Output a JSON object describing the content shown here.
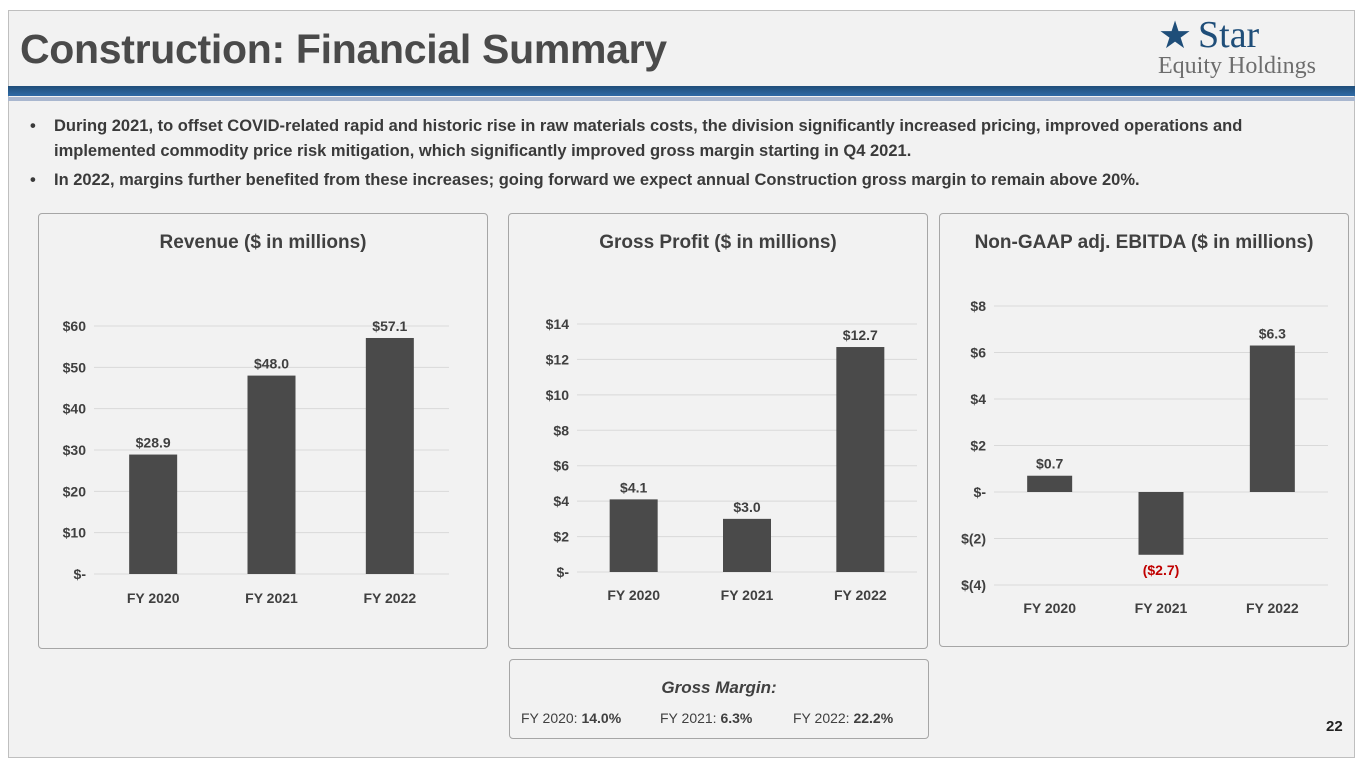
{
  "slide": {
    "title": "Construction: Financial Summary",
    "page_number": "22"
  },
  "logo": {
    "star_glyph": "★",
    "word": "Star",
    "sub": "Equity Holdings"
  },
  "bullets": [
    "During 2021, to offset COVID-related rapid and historic rise in raw materials costs, the division significantly increased pricing, improved operations and implemented commodity price risk mitigation, which significantly improved gross margin starting in Q4 2021.",
    "In 2022, margins further benefited from these increases; going forward we expect annual Construction gross margin to remain above 20%."
  ],
  "bullet_glyph": "•",
  "colors": {
    "bar": "#4a4a4a",
    "negative_label": "#c00000",
    "grid": "#d9d9d9",
    "text": "#404040"
  },
  "chart_data": [
    {
      "type": "bar",
      "title": "Revenue  ($ in millions)",
      "categories": [
        "FY 2020",
        "FY 2021",
        "FY 2022"
      ],
      "values": [
        28.9,
        48.0,
        57.1
      ],
      "data_labels": [
        "$28.9",
        "$48.0",
        "$57.1"
      ],
      "yticks": [
        0,
        10,
        20,
        30,
        40,
        50,
        60
      ],
      "ytick_labels": [
        "$-",
        "$10",
        "$20",
        "$30",
        "$40",
        "$50",
        "$60"
      ],
      "ylim": [
        0,
        60
      ],
      "xlabel": "",
      "ylabel": ""
    },
    {
      "type": "bar",
      "title": "Gross Profit  ($ in millions)",
      "categories": [
        "FY 2020",
        "FY 2021",
        "FY 2022"
      ],
      "values": [
        4.1,
        3.0,
        12.7
      ],
      "data_labels": [
        "$4.1",
        "$3.0",
        "$12.7"
      ],
      "yticks": [
        0,
        2,
        4,
        6,
        8,
        10,
        12,
        14
      ],
      "ytick_labels": [
        "$-",
        "$2",
        "$4",
        "$6",
        "$8",
        "$10",
        "$12",
        "$14"
      ],
      "ylim": [
        0,
        14
      ],
      "xlabel": "",
      "ylabel": ""
    },
    {
      "type": "bar",
      "title": "Non-GAAP adj. EBITDA ($ in millions)",
      "categories": [
        "FY 2020",
        "FY 2021",
        "FY 2022"
      ],
      "values": [
        0.7,
        -2.7,
        6.3
      ],
      "data_labels": [
        "$0.7",
        "($2.7)",
        "$6.3"
      ],
      "yticks": [
        -4,
        -2,
        0,
        2,
        4,
        6,
        8
      ],
      "ytick_labels": [
        "$(4)",
        "$(2)",
        "$-",
        "$2",
        "$4",
        "$6",
        "$8"
      ],
      "ylim": [
        -4,
        8
      ],
      "xlabel": "",
      "ylabel": ""
    }
  ],
  "gross_margin": {
    "title": "Gross Margin:",
    "items": [
      {
        "label": "FY 2020:",
        "value": "14.0%"
      },
      {
        "label": "FY 2021:",
        "value": "6.3%"
      },
      {
        "label": "FY 2022:",
        "value": "22.2%"
      }
    ]
  }
}
